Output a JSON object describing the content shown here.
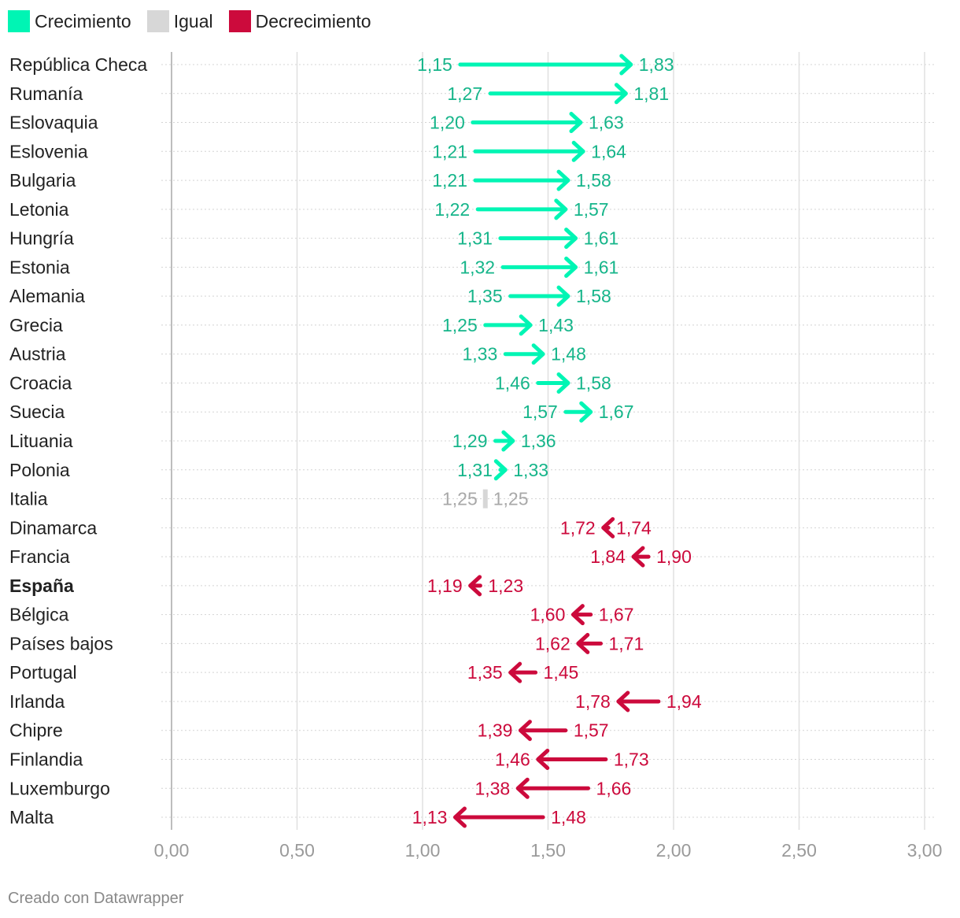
{
  "legend": [
    {
      "label": "Crecimiento",
      "color": "#00f5b4"
    },
    {
      "label": "Igual",
      "color": "#d7d7d7"
    },
    {
      "label": "Decrecimiento",
      "color": "#cc0a3c"
    }
  ],
  "chart_data": {
    "type": "arrow-range",
    "xlim": [
      0,
      3
    ],
    "xticks": [
      "0,00",
      "0,50",
      "1,00",
      "1,50",
      "2,00",
      "2,50",
      "3,00"
    ],
    "tick_values": [
      0,
      0.5,
      1,
      1.5,
      2,
      2.5,
      3
    ],
    "colors": {
      "up": "#00f5b4",
      "up_text": "#16b58a",
      "same": "#d7d7d7",
      "same_text": "#a8a8a8",
      "down": "#cc0a3c"
    },
    "rows": [
      {
        "label": "República Checa",
        "from": 1.15,
        "to": 1.83,
        "from_label": "1,15",
        "to_label": "1,83"
      },
      {
        "label": "Rumanía",
        "from": 1.27,
        "to": 1.81,
        "from_label": "1,27",
        "to_label": "1,81"
      },
      {
        "label": "Eslovaquia",
        "from": 1.2,
        "to": 1.63,
        "from_label": "1,20",
        "to_label": "1,63"
      },
      {
        "label": "Eslovenia",
        "from": 1.21,
        "to": 1.64,
        "from_label": "1,21",
        "to_label": "1,64"
      },
      {
        "label": "Bulgaria",
        "from": 1.21,
        "to": 1.58,
        "from_label": "1,21",
        "to_label": "1,58"
      },
      {
        "label": "Letonia",
        "from": 1.22,
        "to": 1.57,
        "from_label": "1,22",
        "to_label": "1,57"
      },
      {
        "label": "Hungría",
        "from": 1.31,
        "to": 1.61,
        "from_label": "1,31",
        "to_label": "1,61"
      },
      {
        "label": "Estonia",
        "from": 1.32,
        "to": 1.61,
        "from_label": "1,32",
        "to_label": "1,61"
      },
      {
        "label": "Alemania",
        "from": 1.35,
        "to": 1.58,
        "from_label": "1,35",
        "to_label": "1,58"
      },
      {
        "label": "Grecia",
        "from": 1.25,
        "to": 1.43,
        "from_label": "1,25",
        "to_label": "1,43"
      },
      {
        "label": "Austria",
        "from": 1.33,
        "to": 1.48,
        "from_label": "1,33",
        "to_label": "1,48"
      },
      {
        "label": "Croacia",
        "from": 1.46,
        "to": 1.58,
        "from_label": "1,46",
        "to_label": "1,58"
      },
      {
        "label": "Suecia",
        "from": 1.57,
        "to": 1.67,
        "from_label": "1,57",
        "to_label": "1,67"
      },
      {
        "label": "Lituania",
        "from": 1.29,
        "to": 1.36,
        "from_label": "1,29",
        "to_label": "1,36"
      },
      {
        "label": "Polonia",
        "from": 1.31,
        "to": 1.33,
        "from_label": "1,31",
        "to_label": "1,33"
      },
      {
        "label": "Italia",
        "from": 1.25,
        "to": 1.25,
        "from_label": "1,25",
        "to_label": "1,25"
      },
      {
        "label": "Dinamarca",
        "from": 1.74,
        "to": 1.72,
        "from_label": "1,74",
        "to_label": "1,72"
      },
      {
        "label": "Francia",
        "from": 1.9,
        "to": 1.84,
        "from_label": "1,90",
        "to_label": "1,84"
      },
      {
        "label": "España",
        "from": 1.23,
        "to": 1.19,
        "from_label": "1,23",
        "to_label": "1,19",
        "bold": true
      },
      {
        "label": "Bélgica",
        "from": 1.67,
        "to": 1.6,
        "from_label": "1,67",
        "to_label": "1,60"
      },
      {
        "label": "Países bajos",
        "from": 1.71,
        "to": 1.62,
        "from_label": "1,71",
        "to_label": "1,62"
      },
      {
        "label": "Portugal",
        "from": 1.45,
        "to": 1.35,
        "from_label": "1,45",
        "to_label": "1,35"
      },
      {
        "label": "Irlanda",
        "from": 1.94,
        "to": 1.78,
        "from_label": "1,94",
        "to_label": "1,78"
      },
      {
        "label": "Chipre",
        "from": 1.57,
        "to": 1.39,
        "from_label": "1,57",
        "to_label": "1,39"
      },
      {
        "label": "Finlandia",
        "from": 1.73,
        "to": 1.46,
        "from_label": "1,73",
        "to_label": "1,46"
      },
      {
        "label": "Luxemburgo",
        "from": 1.66,
        "to": 1.38,
        "from_label": "1,66",
        "to_label": "1,38"
      },
      {
        "label": "Malta",
        "from": 1.48,
        "to": 1.13,
        "from_label": "1,48",
        "to_label": "1,13"
      }
    ]
  },
  "footer": "Creado con Datawrapper"
}
